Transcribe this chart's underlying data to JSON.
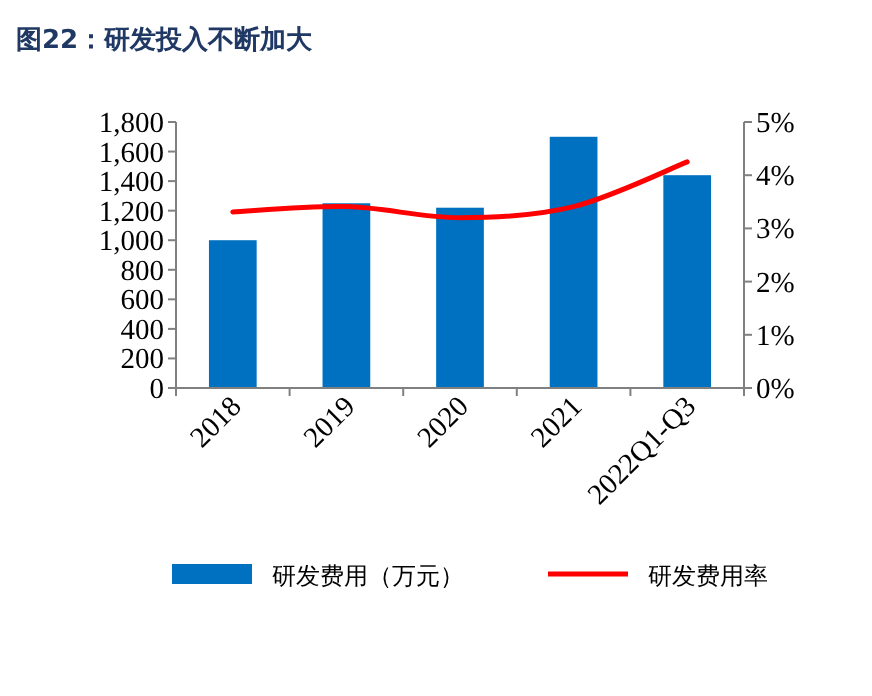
{
  "chart_data": {
    "type": "bar",
    "title": "图22：研发投入不断加大",
    "categories": [
      "2018",
      "2019",
      "2020",
      "2021",
      "2022Q1-Q3"
    ],
    "series": [
      {
        "name": "研发费用（万元）",
        "color": "#0070c0",
        "values": [
          1000,
          1250,
          1220,
          1700,
          1440
        ]
      },
      {
        "name": "研发费用率",
        "type": "line",
        "axis": "y2",
        "color": "#ff0000",
        "values": [
          3.31,
          3.41,
          3.2,
          3.41,
          4.25
        ]
      }
    ],
    "ylim": [
      0,
      1800
    ],
    "yticks": [
      0,
      200,
      400,
      600,
      800,
      {
        "value": 1000,
        "label": "1,000"
      },
      {
        "value": 1200,
        "label": "1,200"
      },
      {
        "value": 1400,
        "label": "1,400"
      },
      {
        "value": 1600,
        "label": "1,600"
      },
      {
        "value": 1800,
        "label": "1,800"
      }
    ],
    "y2lim": [
      0,
      5
    ],
    "y2ticks": [
      {
        "value": 0,
        "label": "0%"
      },
      {
        "value": 1,
        "label": "1%"
      },
      {
        "value": 2,
        "label": "2%"
      },
      {
        "value": 3,
        "label": "3%"
      },
      {
        "value": 4,
        "label": "4%"
      },
      {
        "value": 5,
        "label": "5%"
      }
    ],
    "grid": false,
    "legend": "bottom"
  }
}
